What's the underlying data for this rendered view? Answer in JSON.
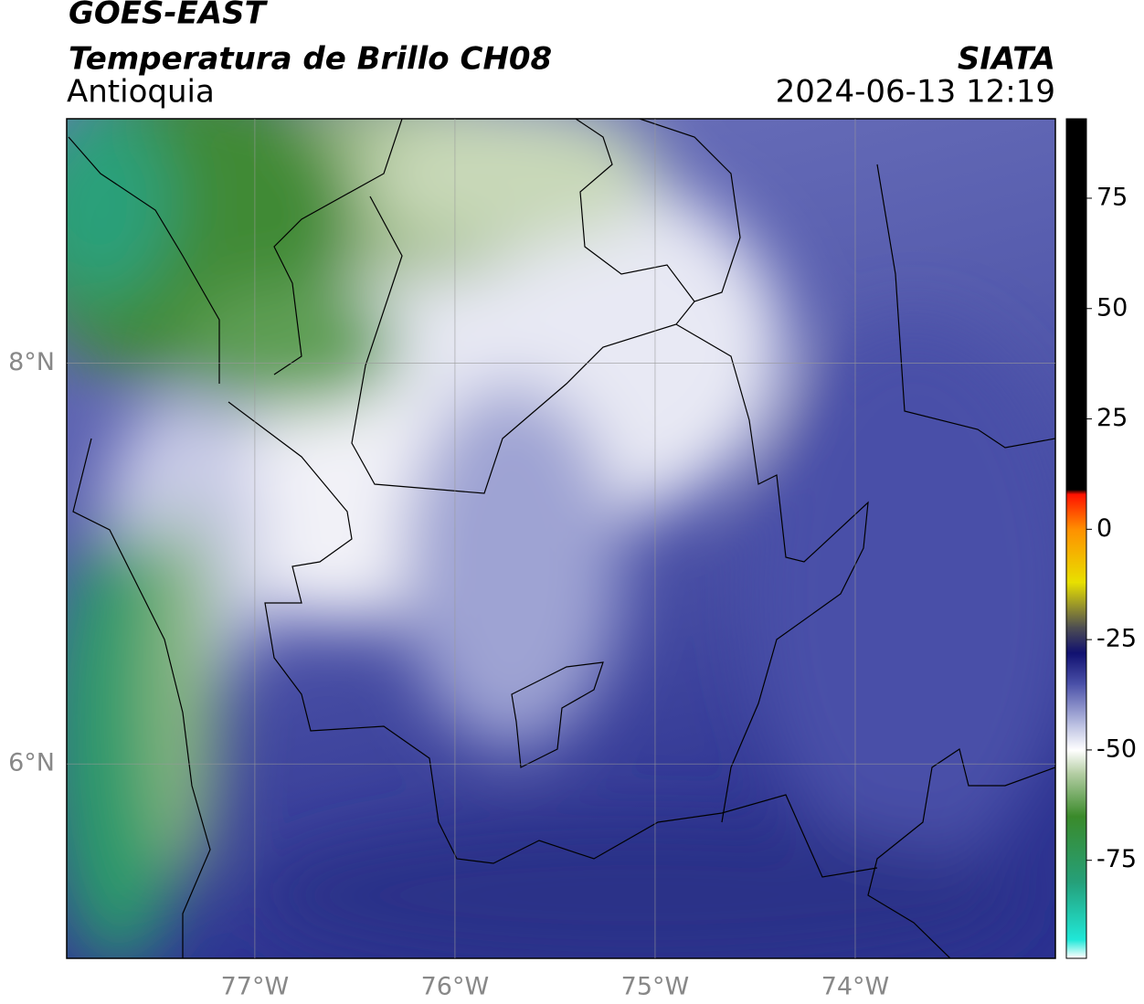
{
  "chart_data": {
    "type": "map",
    "title": "GOES-EAST",
    "subtitle": "Temperatura de Brillo CH08",
    "region": "Antioquia",
    "source": "SIATA",
    "datetime": "2024-06-13 12:19",
    "xlim": [
      -77.94,
      -73.0
    ],
    "ylim": [
      5.03,
      9.22
    ],
    "xticks": [
      {
        "value": -77,
        "label": "77°W"
      },
      {
        "value": -76,
        "label": "76°W"
      },
      {
        "value": -75,
        "label": "75°W"
      },
      {
        "value": -74,
        "label": "74°W"
      }
    ],
    "yticks": [
      {
        "value": 6,
        "label": "6°N"
      },
      {
        "value": 8,
        "label": "8°N"
      }
    ],
    "grid": true,
    "colorbar": {
      "lim": [
        -97,
        93
      ],
      "ticks": [
        -75,
        -50,
        -25,
        0,
        25,
        50,
        75
      ],
      "stops": [
        {
          "value": -97,
          "color": "#ffffff"
        },
        {
          "value": -93,
          "color": "#20e8d8"
        },
        {
          "value": -80,
          "color": "#25a07a"
        },
        {
          "value": -65,
          "color": "#3a8a2a"
        },
        {
          "value": -55,
          "color": "#b8d0a8"
        },
        {
          "value": -50,
          "color": "#ffffff"
        },
        {
          "value": -44,
          "color": "#b8bde0"
        },
        {
          "value": -35,
          "color": "#4a50a8"
        },
        {
          "value": -28,
          "color": "#101070"
        },
        {
          "value": -22,
          "color": "#505050"
        },
        {
          "value": -12,
          "color": "#e8e000"
        },
        {
          "value": 0,
          "color": "#ff9000"
        },
        {
          "value": 8,
          "color": "#ff1000"
        },
        {
          "value": 9,
          "color": "#000000"
        },
        {
          "value": 93,
          "color": "#000000"
        }
      ]
    }
  }
}
